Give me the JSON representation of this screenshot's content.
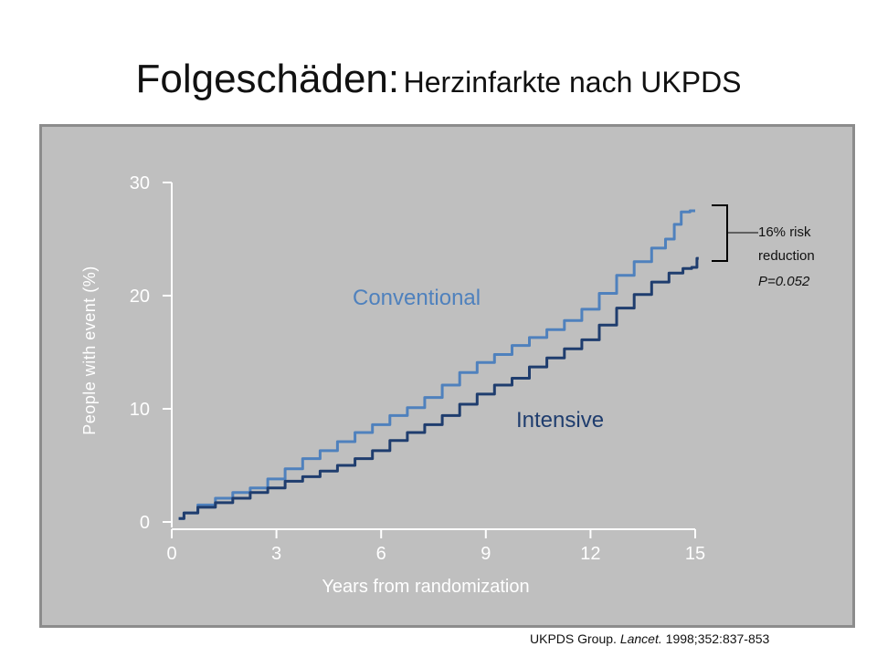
{
  "title": {
    "main": "Folgeschäden:",
    "sub": "Herzinfarkte nach UKPDS"
  },
  "citation": {
    "prefix": "UKPDS Group.",
    "journal": "Lancet.",
    "rest": "1998;352:837-853"
  },
  "annotation": {
    "line1": "16% risk",
    "line2": "reduction",
    "line3": "P=0.052"
  },
  "colors": {
    "panel": "#bfbfbf",
    "axis": "#ffffff",
    "conventional": "#4f81bd",
    "intensive": "#1f3d6e"
  },
  "chart_data": {
    "type": "line",
    "xlabel": "Years from randomization",
    "ylabel": "People with event (%)",
    "xlim": [
      0,
      15
    ],
    "ylim": [
      0,
      30
    ],
    "xticks": [
      "0",
      "3",
      "6",
      "9",
      "12",
      "15"
    ],
    "yticks": [
      "0",
      "10",
      "20",
      "30"
    ],
    "grid": false,
    "series": [
      {
        "name": "Conventional",
        "color": "#4f81bd",
        "x": [
          0.2,
          0.5,
          1.0,
          1.5,
          2.0,
          2.5,
          3.0,
          3.5,
          4.0,
          4.5,
          5.0,
          5.5,
          6.0,
          6.5,
          7.0,
          7.5,
          8.0,
          8.5,
          9.0,
          9.5,
          10.0,
          10.5,
          11.0,
          11.5,
          12.0,
          12.5,
          13.0,
          13.5,
          14.0,
          14.3,
          14.5,
          14.7,
          15.0
        ],
        "values": [
          0.3,
          0.8,
          1.5,
          2.1,
          2.6,
          3.0,
          3.8,
          4.7,
          5.6,
          6.3,
          7.1,
          7.9,
          8.6,
          9.4,
          10.1,
          11.0,
          12.1,
          13.2,
          14.1,
          14.8,
          15.6,
          16.3,
          17.0,
          17.8,
          18.8,
          20.2,
          21.8,
          23.0,
          24.2,
          25.0,
          26.3,
          27.4,
          27.5
        ]
      },
      {
        "name": "Intensive",
        "color": "#1f3d6e",
        "x": [
          0.2,
          0.5,
          1.0,
          1.5,
          2.0,
          2.5,
          3.0,
          3.5,
          4.0,
          4.5,
          5.0,
          5.5,
          6.0,
          6.5,
          7.0,
          7.5,
          8.0,
          8.5,
          9.0,
          9.5,
          10.0,
          10.5,
          11.0,
          11.5,
          12.0,
          12.5,
          13.0,
          13.5,
          14.0,
          14.5,
          14.8,
          15.0,
          15.1
        ],
        "values": [
          0.3,
          0.8,
          1.3,
          1.7,
          2.1,
          2.6,
          3.0,
          3.6,
          4.0,
          4.5,
          5.0,
          5.6,
          6.3,
          7.2,
          7.9,
          8.6,
          9.4,
          10.4,
          11.3,
          12.1,
          12.7,
          13.7,
          14.5,
          15.3,
          16.1,
          17.4,
          18.9,
          20.1,
          21.2,
          22.0,
          22.4,
          22.5,
          23.3
        ]
      }
    ],
    "annotations": [
      "16% risk reduction P=0.052"
    ]
  }
}
